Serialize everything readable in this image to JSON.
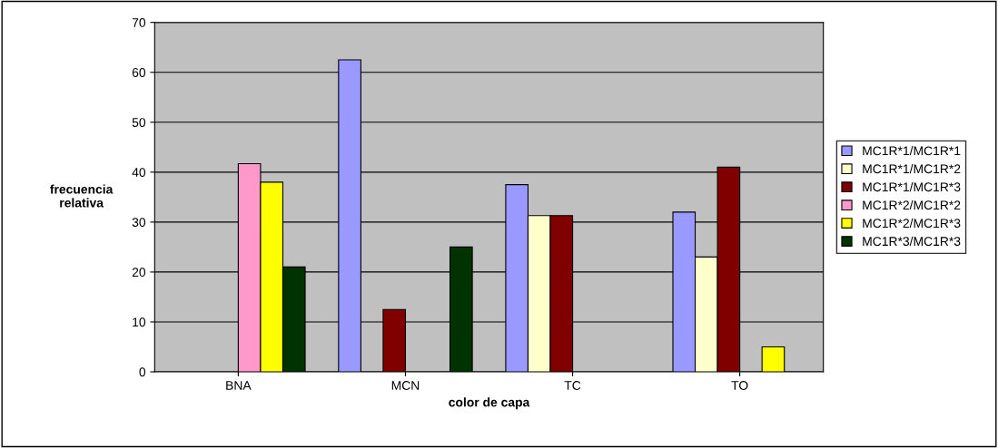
{
  "chart_data": {
    "type": "bar",
    "xlabel": "color de capa",
    "ylabel": "frecuencia\nrelativa",
    "categories": [
      "BNA",
      "MCN",
      "TC",
      "TO"
    ],
    "series": [
      {
        "name": "MC1R*1/MC1R*1",
        "color": "#9999ff",
        "values": [
          null,
          62.5,
          37.5,
          32
        ]
      },
      {
        "name": "MC1R*1/MC1R*2",
        "color": "#ffffcc",
        "values": [
          null,
          null,
          31.3,
          23
        ]
      },
      {
        "name": "MC1R*1/MC1R*3",
        "color": "#800000",
        "values": [
          null,
          12.5,
          31.3,
          41
        ]
      },
      {
        "name": "MC1R*2/MC1R*2",
        "color": "#ff99cc",
        "values": [
          41.7,
          null,
          null,
          null
        ]
      },
      {
        "name": "MC1R*2/MC1R*3",
        "color": "#ffff00",
        "values": [
          38,
          null,
          null,
          5
        ]
      },
      {
        "name": "MC1R*3/MC1R*3",
        "color": "#003300",
        "values": [
          21,
          25,
          null,
          null
        ]
      }
    ],
    "ylim": [
      0,
      70
    ],
    "yticks": [
      0,
      10,
      20,
      30,
      40,
      50,
      60,
      70
    ],
    "grid": "y",
    "legend": "right"
  }
}
